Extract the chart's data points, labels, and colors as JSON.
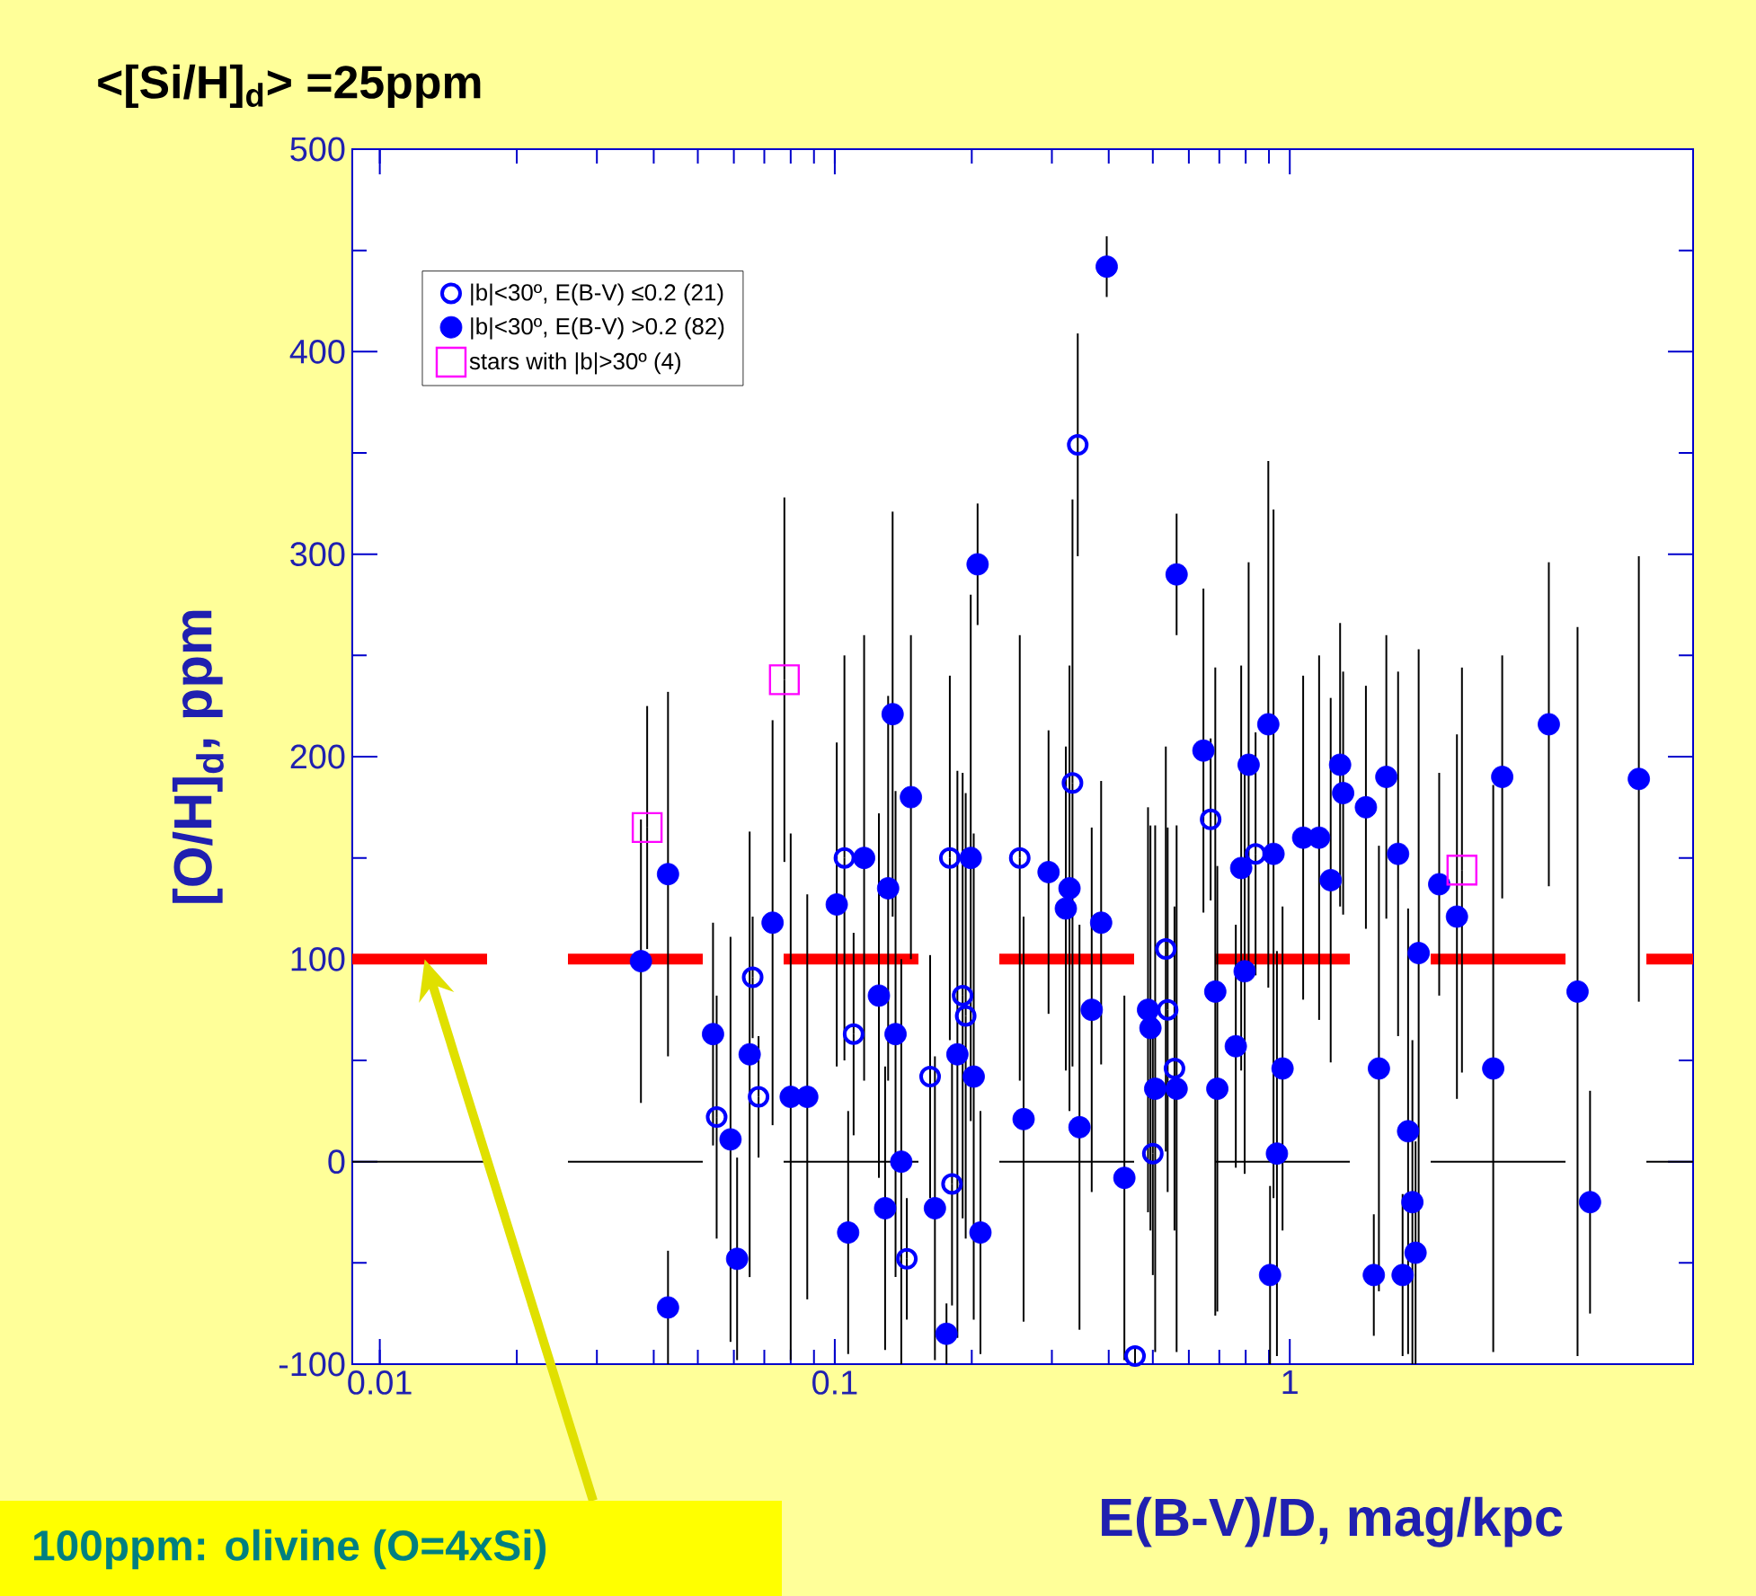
{
  "chart_data": {
    "type": "scatter",
    "xlabel": "E(B-V)/D, mag/kpc",
    "ylabel": "[O/H]$_{d}$, ppm",
    "log": "x",
    "xlim": [
      0.0087,
      7.7
    ],
    "ylim": [
      -100,
      500
    ],
    "xticks": [
      0.01,
      0.1,
      1
    ],
    "yticks": [
      -100,
      0,
      100,
      200,
      300,
      400,
      500
    ],
    "grid": false,
    "legend": "top left",
    "annotations": [
      "<[Si/H]$_{d}$> =25ppm",
      "100ppm: olivine (O=4xSi)"
    ],
    "ref_lines": [
      {
        "axis": "y",
        "value": 100,
        "color": "#ff0000",
        "line_style": "dashed"
      },
      {
        "axis": "y",
        "value": 0,
        "color": "#000000",
        "line_style": "dashed"
      }
    ],
    "series": [
      {
        "name": "|b|<30º, E(B-V) ≤0.2 (21)",
        "color": "#0000ff",
        "marker": "circle-open",
        "x": [
          0.105,
          0.11,
          0.144,
          0.162,
          0.181,
          0.179,
          0.191,
          0.194,
          0.255,
          0.342,
          0.333,
          0.457,
          0.539,
          0.534,
          0.5,
          0.558,
          0.67,
          0.841,
          0.066,
          0.068,
          0.055
        ],
        "values": [
          150,
          63,
          -48,
          42,
          -11,
          150,
          82,
          72,
          150,
          354,
          187,
          -96,
          75,
          105,
          4,
          46,
          169,
          152,
          91,
          32,
          22
        ],
        "errors": [
          100,
          50,
          30,
          60,
          60,
          90,
          110,
          110,
          110,
          55,
          140,
          4,
          90,
          100,
          60,
          80,
          40,
          60,
          30,
          30,
          60
        ]
      },
      {
        "name": "|b|<30º, E(B-V) >0.2 (82)",
        "color": "#0000ff",
        "marker": "circle",
        "x": [
          0.0375,
          0.043,
          0.043,
          0.054,
          0.059,
          0.061,
          0.065,
          0.073,
          0.08,
          0.087,
          0.101,
          0.116,
          0.107,
          0.125,
          0.131,
          0.134,
          0.136,
          0.129,
          0.147,
          0.14,
          0.166,
          0.176,
          0.199,
          0.186,
          0.202,
          0.209,
          0.206,
          0.26,
          0.295,
          0.328,
          0.322,
          0.345,
          0.385,
          0.396,
          0.367,
          0.433,
          0.488,
          0.494,
          0.506,
          0.564,
          0.564,
          0.646,
          0.686,
          0.693,
          0.761,
          0.782,
          0.796,
          0.812,
          0.921,
          0.897,
          0.964,
          0.937,
          0.905,
          1.07,
          1.16,
          1.23,
          1.29,
          1.31,
          1.47,
          1.63,
          1.73,
          1.92,
          1.57,
          1.82,
          1.86,
          1.89,
          1.53,
          1.77,
          2.13,
          2.33,
          2.93,
          2.8,
          3.71,
          4.29,
          4.57,
          5.85
        ],
        "values": [
          99,
          142,
          -72,
          63,
          11,
          -48,
          53,
          118,
          32,
          32,
          127,
          150,
          -35,
          82,
          135,
          221,
          63,
          -23,
          180,
          0,
          -23,
          -85,
          150,
          53,
          42,
          -35,
          295,
          21,
          143,
          135,
          125,
          17,
          118,
          442,
          75,
          -8,
          75,
          66,
          36,
          36,
          290,
          203,
          84,
          36,
          57,
          145,
          94,
          196,
          152,
          216,
          46,
          4,
          -56,
          160,
          160,
          139,
          196,
          182,
          175,
          190,
          152,
          103,
          46,
          15,
          -20,
          -45,
          -56,
          -56,
          137,
          121,
          190,
          46,
          216,
          84,
          -20,
          189
        ],
        "errors": [
          70,
          90,
          28,
          55,
          100,
          50,
          110,
          100,
          130,
          100,
          80,
          110,
          60,
          90,
          95,
          100,
          120,
          70,
          80,
          100,
          75,
          15,
          130,
          140,
          120,
          60,
          30,
          100,
          70,
          110,
          80,
          100,
          70,
          15,
          90,
          90,
          100,
          100,
          130,
          130,
          30,
          80,
          160,
          110,
          60,
          100,
          100,
          100,
          170,
          130,
          80,
          100,
          44,
          80,
          90,
          90,
          70,
          60,
          60,
          70,
          90,
          150,
          110,
          110,
          80,
          55,
          30,
          40,
          55,
          90,
          60,
          140,
          80,
          180,
          55,
          110
        ]
      },
      {
        "name": "stars with |b|>30º (4)",
        "color": "#ff00ff",
        "marker": "square",
        "x": [
          0.0387,
          0.0775,
          2.39
        ],
        "values": [
          165,
          238,
          144
        ],
        "errors": [
          60,
          90,
          100
        ]
      }
    ]
  }
}
